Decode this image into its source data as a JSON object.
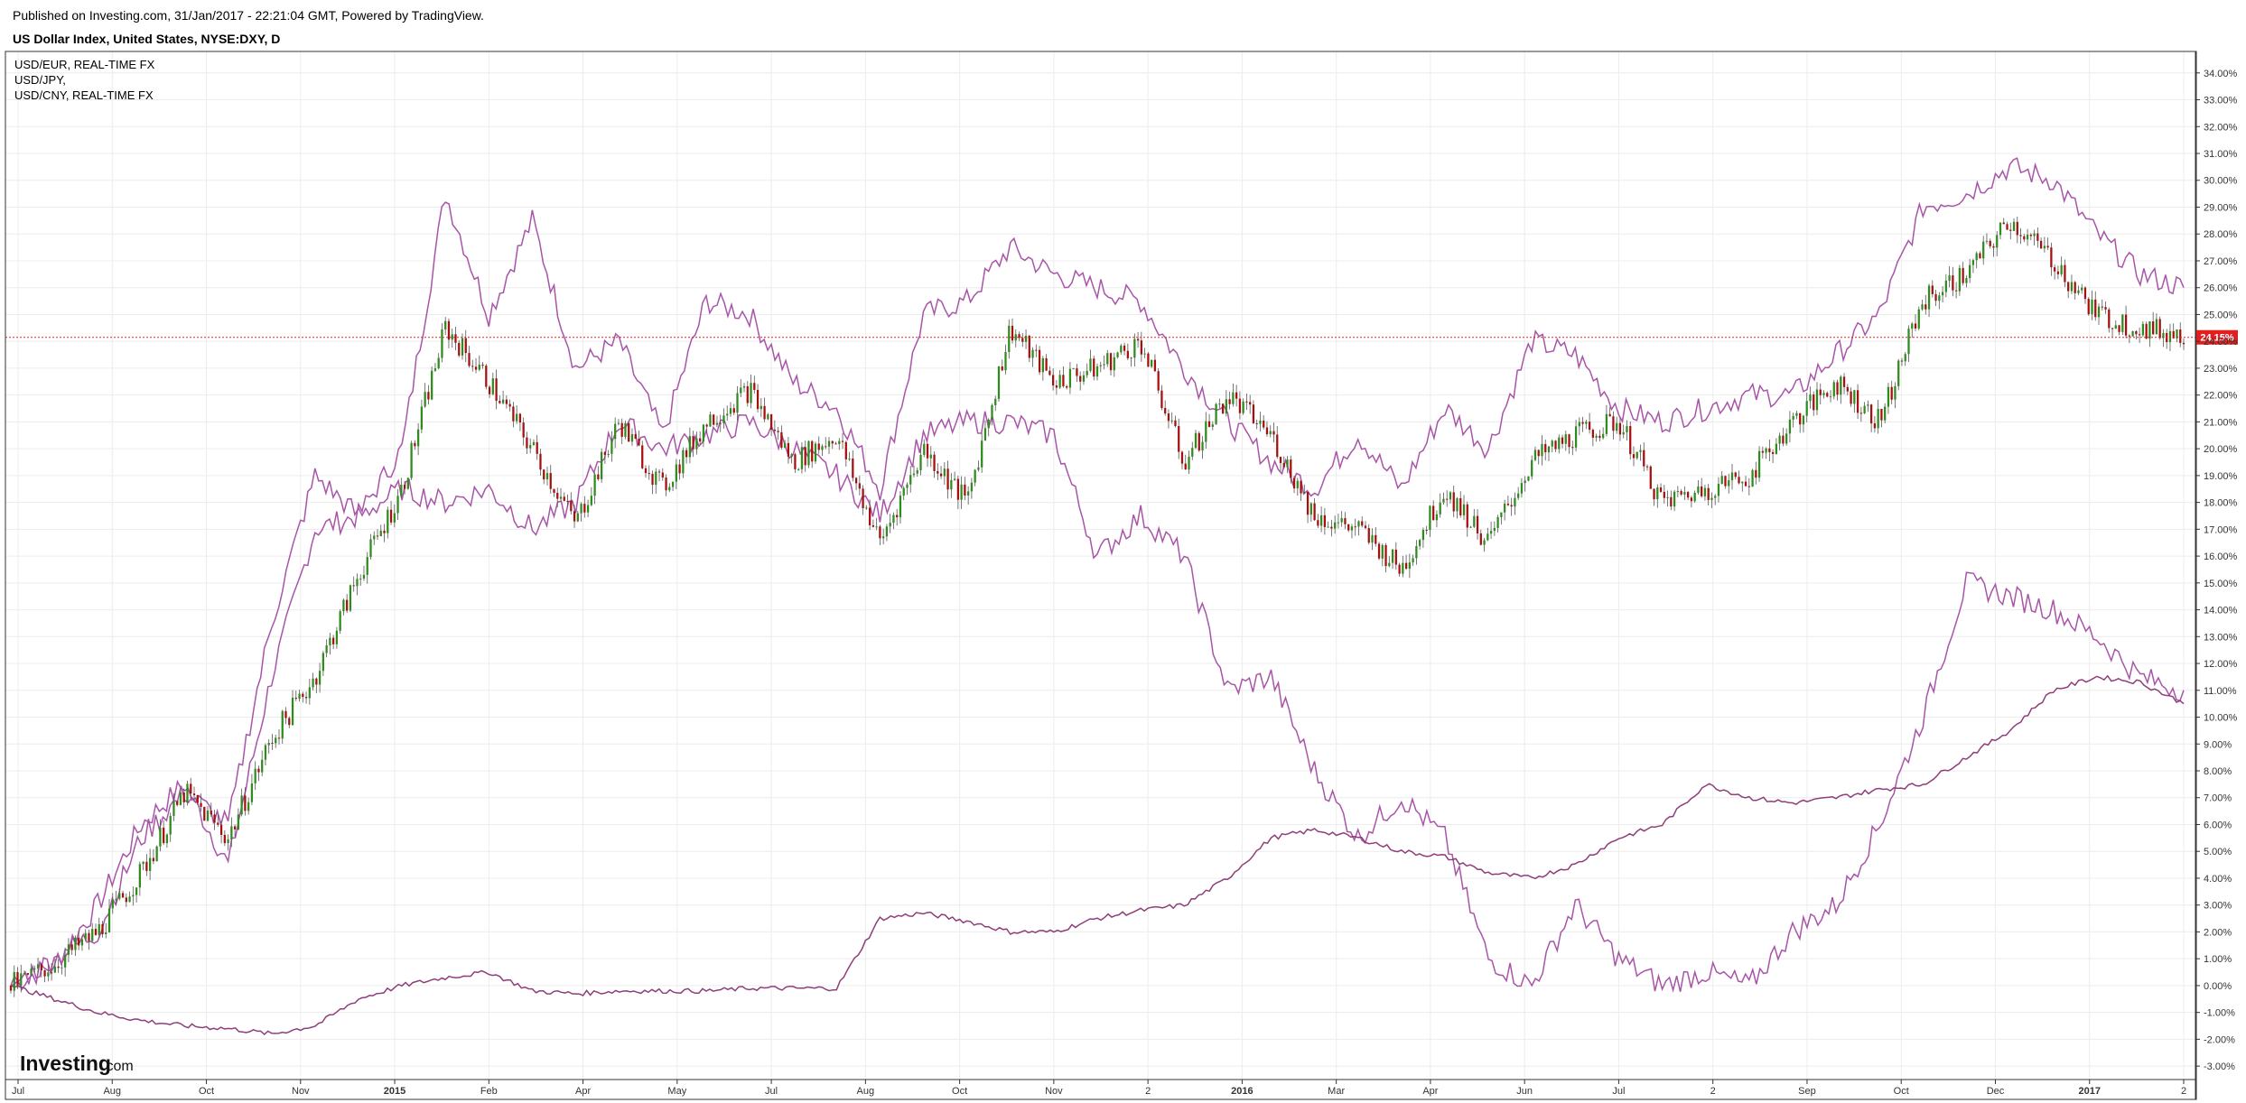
{
  "header": {
    "published": "Published on Investing.com, 31/Jan/2017 - 22:21:04 GMT, Powered by TradingView.",
    "title": "US Dollar Index, United States, NYSE:DXY, D"
  },
  "legend": [
    "USD/EUR, REAL-TIME FX",
    "USD/JPY,",
    "USD/CNY, REAL-TIME FX"
  ],
  "watermark": {
    "main": "Investing",
    "suffix": ".com"
  },
  "colors": {
    "up": "#2e8b1e",
    "down": "#a50f0f",
    "wick": "#555555",
    "compare": "#a855a8",
    "cny": "#8e3e78",
    "grid": "#ececec",
    "current": "#e02020"
  },
  "chart_data": {
    "type": "line",
    "ylabel": "",
    "ylim": [
      -3.5,
      34.8
    ],
    "y_ticks": [
      -3,
      -2,
      -1,
      0,
      1,
      2,
      3,
      4,
      5,
      6,
      7,
      8,
      9,
      10,
      11,
      12,
      13,
      14,
      15,
      16,
      17,
      18,
      19,
      20,
      21,
      22,
      23,
      24,
      25,
      26,
      27,
      28,
      29,
      30,
      31,
      32,
      33,
      34
    ],
    "x_tick_labels": [
      "Jul",
      "Aug",
      "Oct",
      "Nov",
      "2015",
      "Feb",
      "Apr",
      "May",
      "Jul",
      "Aug",
      "Oct",
      "Nov",
      "2",
      "2016",
      "Mar",
      "Apr",
      "Jun",
      "Jul",
      "2",
      "Sep",
      "Oct",
      "Dec",
      "2017",
      "2"
    ],
    "current_value": 24.15,
    "current_label": "24.15%",
    "series": [
      {
        "name": "US Dollar Index",
        "style": "candles",
        "x": [
          0,
          2,
          4,
          6,
          8,
          10,
          12,
          14,
          16,
          18,
          20,
          22,
          24,
          26,
          28,
          30,
          32,
          34,
          36,
          38,
          40,
          42,
          44,
          46,
          48,
          50,
          52,
          54,
          56,
          58,
          60,
          62,
          64,
          66,
          68,
          70,
          72,
          74,
          76,
          78,
          80,
          82,
          84,
          86,
          88,
          90,
          92,
          94,
          96,
          98,
          100
        ],
        "y": [
          0,
          0.8,
          2.0,
          4.2,
          7.2,
          5.5,
          9.2,
          11.5,
          15.3,
          18.5,
          24.5,
          22.5,
          20.0,
          17.2,
          21.0,
          18.5,
          21.0,
          22.2,
          19.5,
          20.5,
          16.5,
          20.0,
          18.0,
          24.5,
          22.5,
          23.0,
          24.0,
          19.5,
          22.0,
          20.5,
          17.5,
          17.0,
          15.5,
          18.5,
          16.5,
          19.5,
          20.5,
          21.0,
          18.0,
          18.5,
          19.0,
          21.0,
          22.5,
          21.0,
          25.5,
          26.5,
          28.5,
          27.0,
          25.0,
          24.5,
          24.2
        ]
      },
      {
        "name": "USD/EUR",
        "style": "line",
        "x": [
          0,
          2,
          4,
          6,
          8,
          10,
          12,
          14,
          16,
          18,
          20,
          22,
          24,
          26,
          28,
          30,
          32,
          34,
          36,
          38,
          40,
          42,
          44,
          46,
          48,
          50,
          52,
          54,
          56,
          58,
          60,
          62,
          64,
          66,
          68,
          70,
          72,
          74,
          76,
          78,
          80,
          82,
          84,
          86,
          88,
          90,
          92,
          94,
          96,
          98,
          100
        ],
        "y": [
          0,
          0.8,
          3.0,
          6.0,
          7.5,
          4.5,
          11.5,
          17.0,
          17.5,
          20.0,
          29.5,
          25.0,
          28.5,
          23.0,
          24.0,
          20.5,
          25.5,
          25.0,
          22.5,
          21.5,
          18.5,
          25.0,
          25.5,
          27.5,
          26.5,
          26.0,
          25.5,
          23.0,
          21.0,
          19.5,
          18.5,
          20.5,
          18.5,
          21.5,
          20.0,
          24.0,
          23.5,
          21.5,
          21.0,
          21.5,
          22.0,
          22.0,
          23.5,
          25.0,
          29.0,
          29.5,
          30.5,
          30.0,
          28.0,
          26.5,
          26.0
        ]
      },
      {
        "name": "USD/JPY",
        "style": "line",
        "x": [
          0,
          2,
          4,
          6,
          8,
          10,
          12,
          14,
          16,
          18,
          20,
          22,
          24,
          26,
          28,
          30,
          32,
          34,
          36,
          38,
          40,
          42,
          44,
          46,
          48,
          50,
          52,
          54,
          56,
          58,
          60,
          62,
          64,
          66,
          68,
          70,
          72,
          74,
          76,
          78,
          80,
          82,
          84,
          86,
          88,
          90,
          92,
          94,
          96,
          98,
          100
        ],
        "y": [
          0,
          1.0,
          2.0,
          5.5,
          7.2,
          6.0,
          13.5,
          19.0,
          17.5,
          18.5,
          18.0,
          18.5,
          17.0,
          18.0,
          21.0,
          20.0,
          20.5,
          21.0,
          20.0,
          19.0,
          17.5,
          20.5,
          21.0,
          21.0,
          20.5,
          16.0,
          17.5,
          16.0,
          11.0,
          11.5,
          8.0,
          5.5,
          7.0,
          5.5,
          1.0,
          0.0,
          3.0,
          1.0,
          0.0,
          0.5,
          0.0,
          2.0,
          3.0,
          6.0,
          10.0,
          15.0,
          14.5,
          14.0,
          13.0,
          11.5,
          11.0
        ]
      },
      {
        "name": "USD/CNY",
        "style": "line",
        "x": [
          0,
          2,
          4,
          6,
          8,
          10,
          12,
          14,
          16,
          18,
          20,
          22,
          24,
          26,
          28,
          30,
          32,
          34,
          36,
          38,
          40,
          42,
          44,
          46,
          48,
          50,
          52,
          54,
          56,
          58,
          60,
          62,
          64,
          66,
          68,
          70,
          72,
          74,
          76,
          78,
          80,
          82,
          84,
          86,
          88,
          90,
          92,
          94,
          96,
          98,
          100
        ],
        "y": [
          0,
          -0.5,
          -1.0,
          -1.3,
          -1.5,
          -1.6,
          -1.8,
          -1.5,
          -0.5,
          0.0,
          0.3,
          0.5,
          -0.2,
          -0.3,
          -0.2,
          -0.2,
          -0.2,
          -0.1,
          -0.1,
          -0.1,
          2.5,
          2.7,
          2.4,
          2.0,
          2.0,
          2.5,
          2.8,
          3.0,
          4.0,
          5.5,
          5.8,
          5.5,
          5.0,
          4.8,
          4.2,
          4.0,
          4.5,
          5.5,
          6.0,
          7.5,
          7.0,
          6.8,
          7.0,
          7.3,
          7.5,
          8.5,
          9.5,
          11.0,
          11.5,
          11.3,
          10.5
        ]
      }
    ]
  }
}
